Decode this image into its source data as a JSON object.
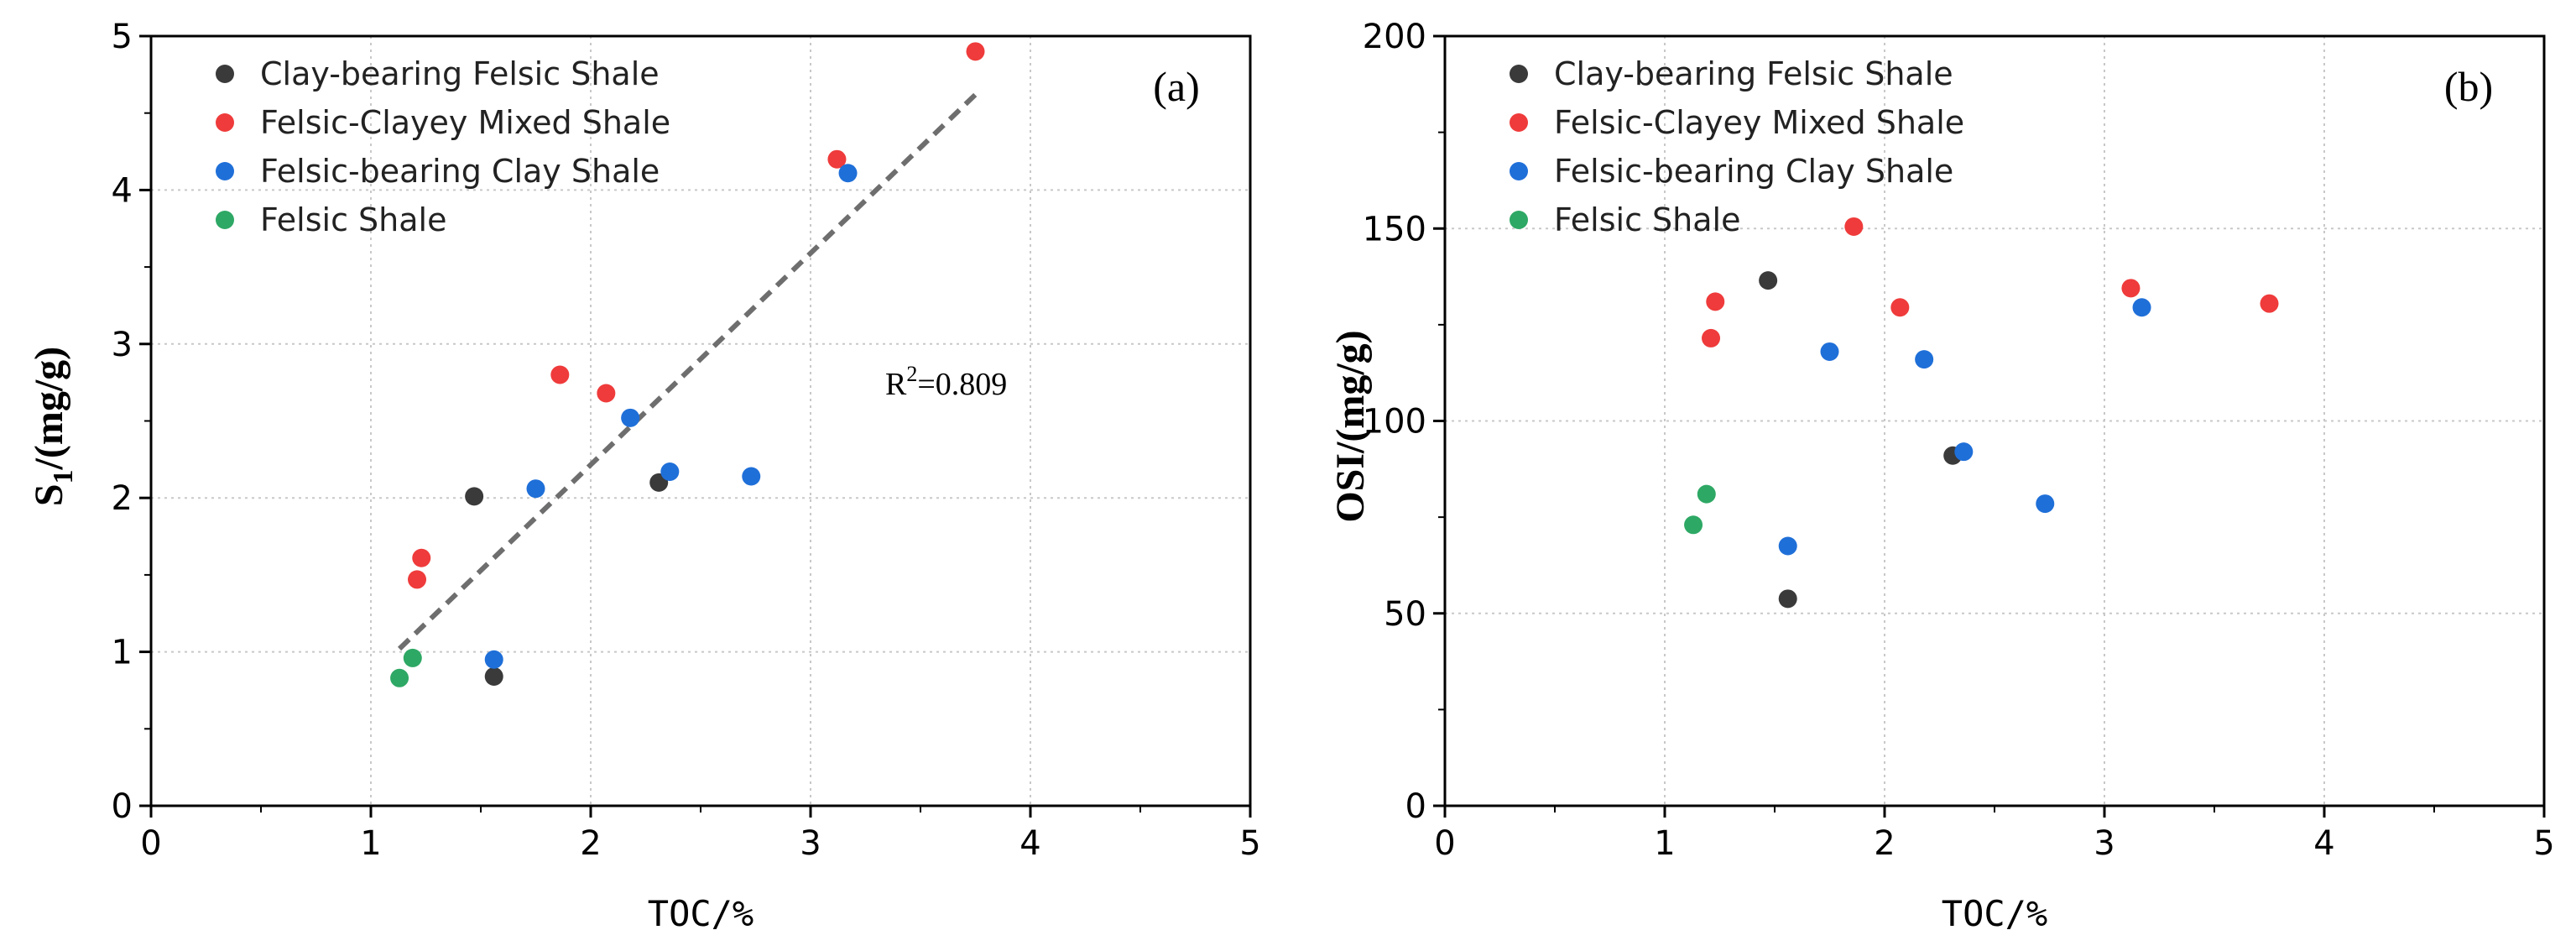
{
  "chart_data": [
    {
      "id": "a",
      "type": "scatter",
      "panel_label": "(a)",
      "xlabel": "TOC/%",
      "ylabel": "S1/(mg/g)",
      "ylabel_main": "S",
      "ylabel_sub": "1",
      "ylabel_rest": "/(mg/g)",
      "xlim": [
        0,
        5
      ],
      "ylim": [
        0,
        5
      ],
      "xticks": [
        0,
        1,
        2,
        3,
        4,
        5
      ],
      "yticks": [
        0,
        1,
        2,
        3,
        4,
        5
      ],
      "grid": true,
      "legend_position": "top-left",
      "series": [
        {
          "name": "Clay-bearing Felsic Shale",
          "color": "#3a3a3a",
          "points": [
            [
              1.47,
              2.01
            ],
            [
              1.56,
              0.84
            ],
            [
              2.31,
              2.1
            ]
          ]
        },
        {
          "name": "Felsic-Clayey Mixed Shale",
          "color": "#ef3b3b",
          "points": [
            [
              1.23,
              1.61
            ],
            [
              1.21,
              1.47
            ],
            [
              1.86,
              2.8
            ],
            [
              2.07,
              2.68
            ],
            [
              3.12,
              4.2
            ],
            [
              3.75,
              4.9
            ]
          ]
        },
        {
          "name": "Felsic-bearing Clay Shale",
          "color": "#1f6fd8",
          "points": [
            [
              1.56,
              0.95
            ],
            [
              1.75,
              2.06
            ],
            [
              2.18,
              2.52
            ],
            [
              2.36,
              2.17
            ],
            [
              2.73,
              2.14
            ],
            [
              3.17,
              4.11
            ]
          ]
        },
        {
          "name": "Felsic Shale",
          "color": "#2ea865",
          "points": [
            [
              1.13,
              0.83
            ],
            [
              1.19,
              0.96
            ]
          ]
        }
      ],
      "fit_line": {
        "x": [
          1.13,
          3.75
        ],
        "y": [
          1.02,
          4.62
        ]
      },
      "annotation": {
        "text": "R2=0.809",
        "prefix": "R",
        "superscript": "2",
        "suffix": "=0.809",
        "x": 2.65,
        "y": 2.75
      }
    },
    {
      "id": "b",
      "type": "scatter",
      "panel_label": "(b)",
      "xlabel": "TOC/%",
      "ylabel": "OSI/(mg/g)",
      "xlim": [
        0,
        5
      ],
      "ylim": [
        0,
        200
      ],
      "xticks": [
        0,
        1,
        2,
        3,
        4,
        5
      ],
      "yticks": [
        0,
        50,
        100,
        150,
        200
      ],
      "grid": true,
      "legend_position": "top-left",
      "series": [
        {
          "name": "Clay-bearing Felsic Shale",
          "color": "#3a3a3a",
          "points": [
            [
              1.47,
              136.5
            ],
            [
              1.56,
              53.8
            ],
            [
              2.31,
              91
            ]
          ]
        },
        {
          "name": "Felsic-Clayey Mixed Shale",
          "color": "#ef3b3b",
          "points": [
            [
              1.23,
              131
            ],
            [
              1.21,
              121.5
            ],
            [
              1.86,
              150.5
            ],
            [
              2.07,
              129.5
            ],
            [
              3.12,
              134.5
            ],
            [
              3.75,
              130.5
            ]
          ]
        },
        {
          "name": "Felsic-bearing Clay Shale",
          "color": "#1f6fd8",
          "points": [
            [
              1.56,
              67.5
            ],
            [
              1.75,
              118
            ],
            [
              2.18,
              116
            ],
            [
              2.36,
              92
            ],
            [
              2.73,
              78.5
            ],
            [
              3.17,
              129.5
            ]
          ]
        },
        {
          "name": "Felsic Shale",
          "color": "#2ea865",
          "points": [
            [
              1.13,
              73
            ],
            [
              1.19,
              81
            ]
          ]
        }
      ]
    }
  ]
}
